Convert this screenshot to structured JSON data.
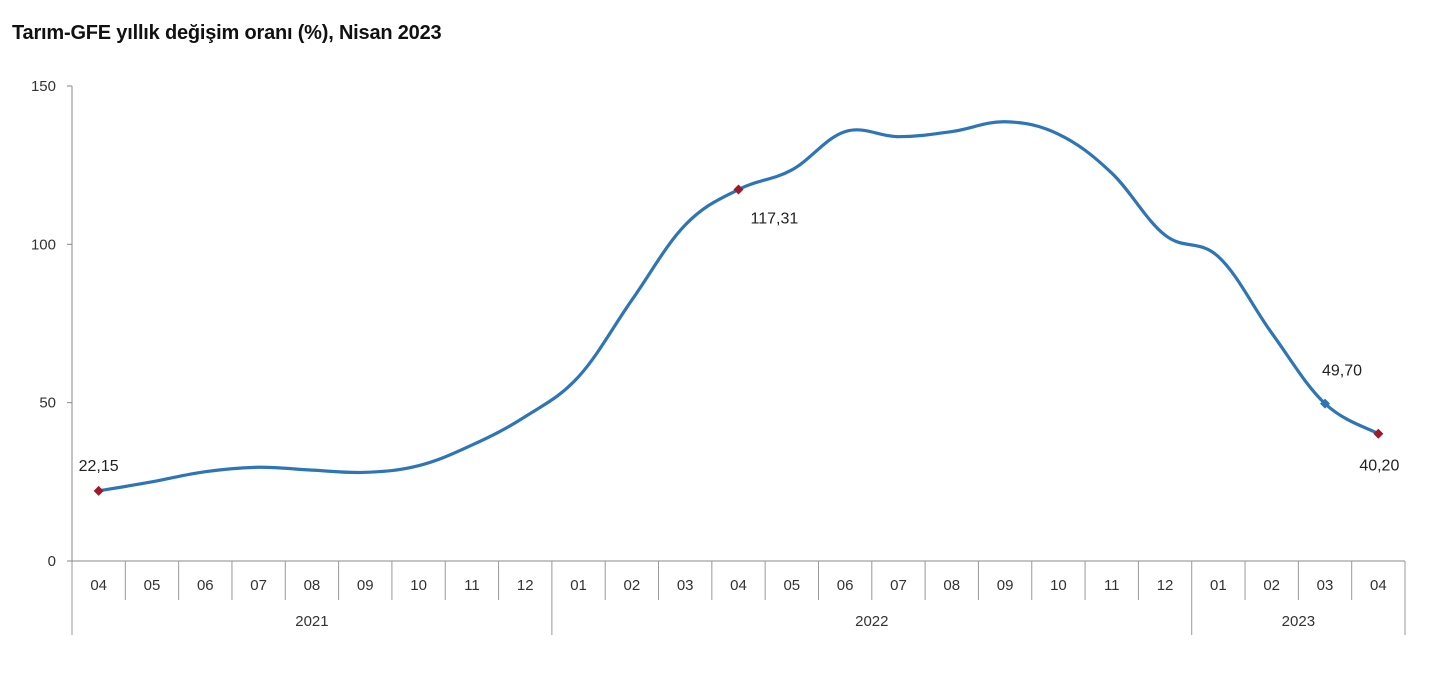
{
  "chart_data": {
    "type": "line",
    "title": "Tarım-GFE yıllık değişim oranı (%), Nisan 2023",
    "xlabel": "",
    "ylabel": "",
    "ylim": [
      0,
      150
    ],
    "yticks": [
      "0",
      "50",
      "100",
      "150"
    ],
    "ytick_values": [
      0,
      50,
      100,
      150
    ],
    "grid": false,
    "categories": [
      "04",
      "05",
      "06",
      "07",
      "08",
      "09",
      "10",
      "11",
      "12",
      "01",
      "02",
      "03",
      "04",
      "05",
      "06",
      "07",
      "08",
      "09",
      "10",
      "11",
      "12",
      "01",
      "02",
      "03",
      "04"
    ],
    "year_groups": [
      {
        "label": "2021",
        "count": 9
      },
      {
        "label": "2022",
        "count": 12
      },
      {
        "label": "2023",
        "count": 4
      }
    ],
    "series": [
      {
        "name": "Tarım-GFE",
        "color": "#2e75b6",
        "values": [
          22.15,
          25.0,
          28.2,
          29.6,
          28.7,
          28.0,
          30.1,
          36.6,
          45.6,
          58.2,
          82.4,
          106.1,
          117.31,
          123.5,
          135.6,
          134.0,
          135.6,
          138.7,
          134.8,
          122.5,
          102.9,
          96.1,
          72.0,
          49.7,
          40.2
        ]
      }
    ],
    "annotations": [
      {
        "index": 0,
        "text": "22,15",
        "marker_color": "#a0192b",
        "position": "above"
      },
      {
        "index": 12,
        "text": "117,31",
        "marker_color": "#a0192b",
        "position": "below-right"
      },
      {
        "index": 23,
        "text": "49,70",
        "marker_color": "#2e75b6",
        "position": "above"
      },
      {
        "index": 24,
        "text": "40,20",
        "marker_color": "#a0192b",
        "position": "below"
      }
    ]
  }
}
